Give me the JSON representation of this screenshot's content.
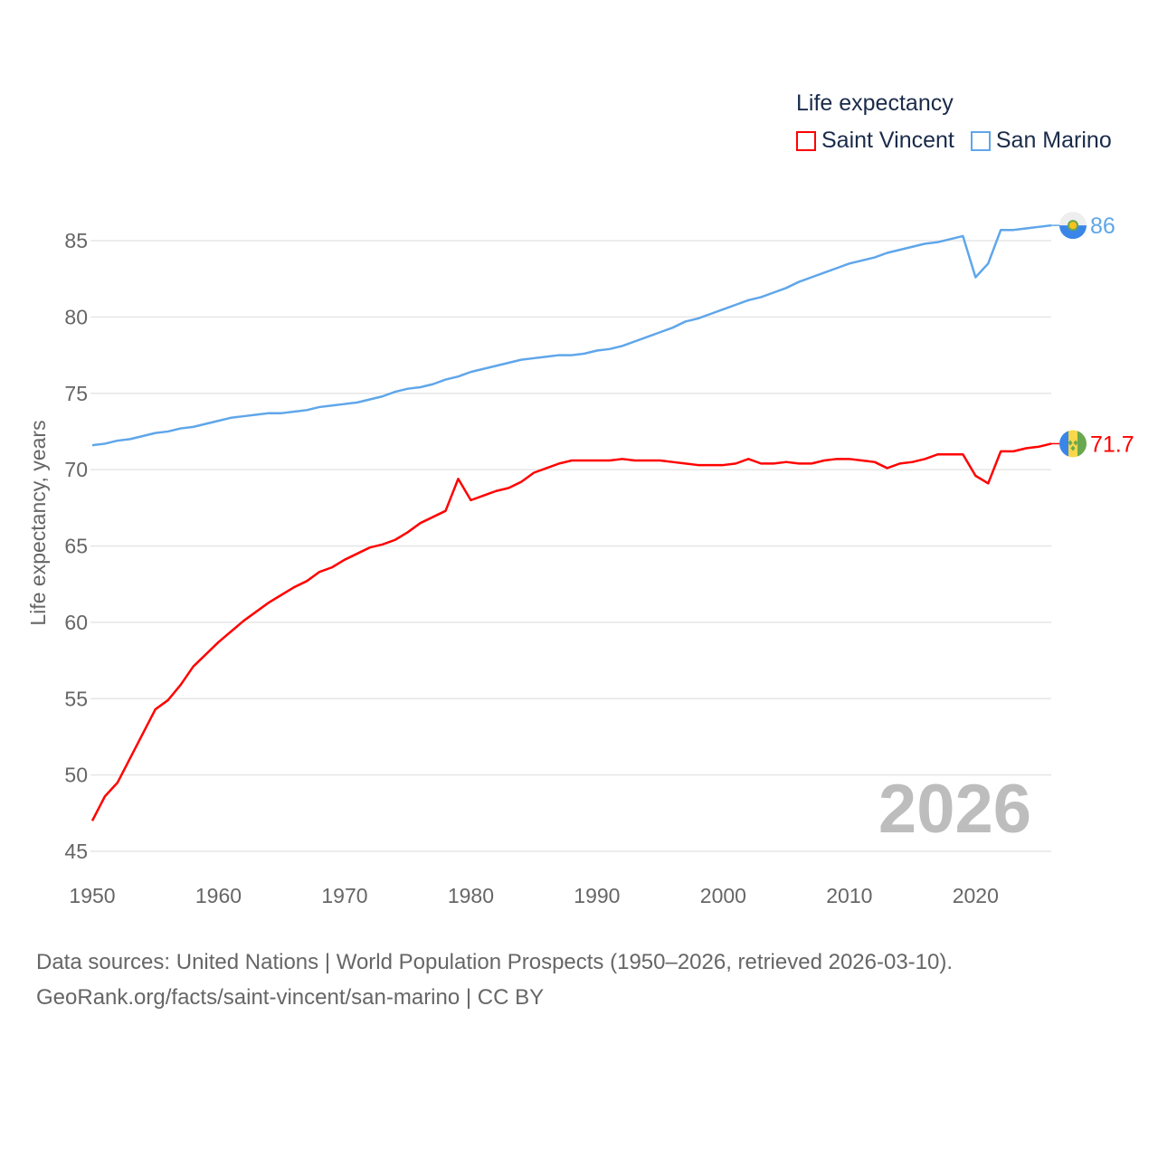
{
  "legend": {
    "title": "Life expectancy"
  },
  "footer": {
    "line1": "Data sources: United Nations | World Population Prospects (1950–2026, retrieved 2026-03-10).",
    "line2": "GeoRank.org/facts/saint-vincent/san-marino | CC BY"
  },
  "chart_data": {
    "type": "line",
    "title": "Life expectancy",
    "ylabel": "Life expectancy, years",
    "xlabel": "",
    "xlim": [
      1950,
      2026
    ],
    "ylim": [
      45,
      87
    ],
    "yticks": [
      45,
      50,
      55,
      60,
      65,
      70,
      75,
      80,
      85
    ],
    "xticks": [
      1950,
      1960,
      1970,
      1980,
      1990,
      2000,
      2010,
      2020
    ],
    "grid": true,
    "legend_position": "top-right",
    "year_label": "2026",
    "x": [
      1950,
      1951,
      1952,
      1953,
      1954,
      1955,
      1956,
      1957,
      1958,
      1959,
      1960,
      1961,
      1962,
      1963,
      1964,
      1965,
      1966,
      1967,
      1968,
      1969,
      1970,
      1971,
      1972,
      1973,
      1974,
      1975,
      1976,
      1977,
      1978,
      1979,
      1980,
      1981,
      1982,
      1983,
      1984,
      1985,
      1986,
      1987,
      1988,
      1989,
      1990,
      1991,
      1992,
      1993,
      1994,
      1995,
      1996,
      1997,
      1998,
      1999,
      2000,
      2001,
      2002,
      2003,
      2004,
      2005,
      2006,
      2007,
      2008,
      2009,
      2010,
      2011,
      2012,
      2013,
      2014,
      2015,
      2016,
      2017,
      2018,
      2019,
      2020,
      2021,
      2022,
      2023,
      2024,
      2025,
      2026
    ],
    "series": [
      {
        "name": "Saint Vincent",
        "color": "#ff0000",
        "end_label": "71.7",
        "flag": "saint-vincent-flag",
        "values": [
          47.0,
          48.6,
          49.5,
          51.1,
          52.7,
          54.3,
          54.9,
          55.9,
          57.1,
          57.9,
          58.7,
          59.4,
          60.1,
          60.7,
          61.3,
          61.8,
          62.3,
          62.7,
          63.3,
          63.6,
          64.1,
          64.5,
          64.9,
          65.1,
          65.4,
          65.9,
          66.5,
          66.9,
          67.3,
          69.4,
          68.0,
          68.3,
          68.6,
          68.8,
          69.2,
          69.8,
          70.1,
          70.4,
          70.6,
          70.6,
          70.6,
          70.6,
          70.7,
          70.6,
          70.6,
          70.6,
          70.5,
          70.4,
          70.3,
          70.3,
          70.3,
          70.4,
          70.7,
          70.4,
          70.4,
          70.5,
          70.4,
          70.4,
          70.6,
          70.7,
          70.7,
          70.6,
          70.5,
          70.1,
          70.4,
          70.5,
          70.7,
          71.0,
          71.0,
          71.0,
          69.6,
          69.1,
          71.2,
          71.2,
          71.4,
          71.5,
          71.7
        ]
      },
      {
        "name": "San Marino",
        "color": "#5fa6ea",
        "end_label": "86",
        "flag": "san-marino-flag",
        "values": [
          71.6,
          71.7,
          71.9,
          72.0,
          72.2,
          72.4,
          72.5,
          72.7,
          72.8,
          73.0,
          73.2,
          73.4,
          73.5,
          73.6,
          73.7,
          73.7,
          73.8,
          73.9,
          74.1,
          74.2,
          74.3,
          74.4,
          74.6,
          74.8,
          75.1,
          75.3,
          75.4,
          75.6,
          75.9,
          76.1,
          76.4,
          76.6,
          76.8,
          77.0,
          77.2,
          77.3,
          77.4,
          77.5,
          77.5,
          77.6,
          77.8,
          77.9,
          78.1,
          78.4,
          78.7,
          79.0,
          79.3,
          79.7,
          79.9,
          80.2,
          80.5,
          80.8,
          81.1,
          81.3,
          81.6,
          81.9,
          82.3,
          82.6,
          82.9,
          83.2,
          83.5,
          83.7,
          83.9,
          84.2,
          84.4,
          84.6,
          84.8,
          84.9,
          85.1,
          85.3,
          82.6,
          83.5,
          85.7,
          85.7,
          85.8,
          85.9,
          86.0
        ]
      }
    ]
  }
}
